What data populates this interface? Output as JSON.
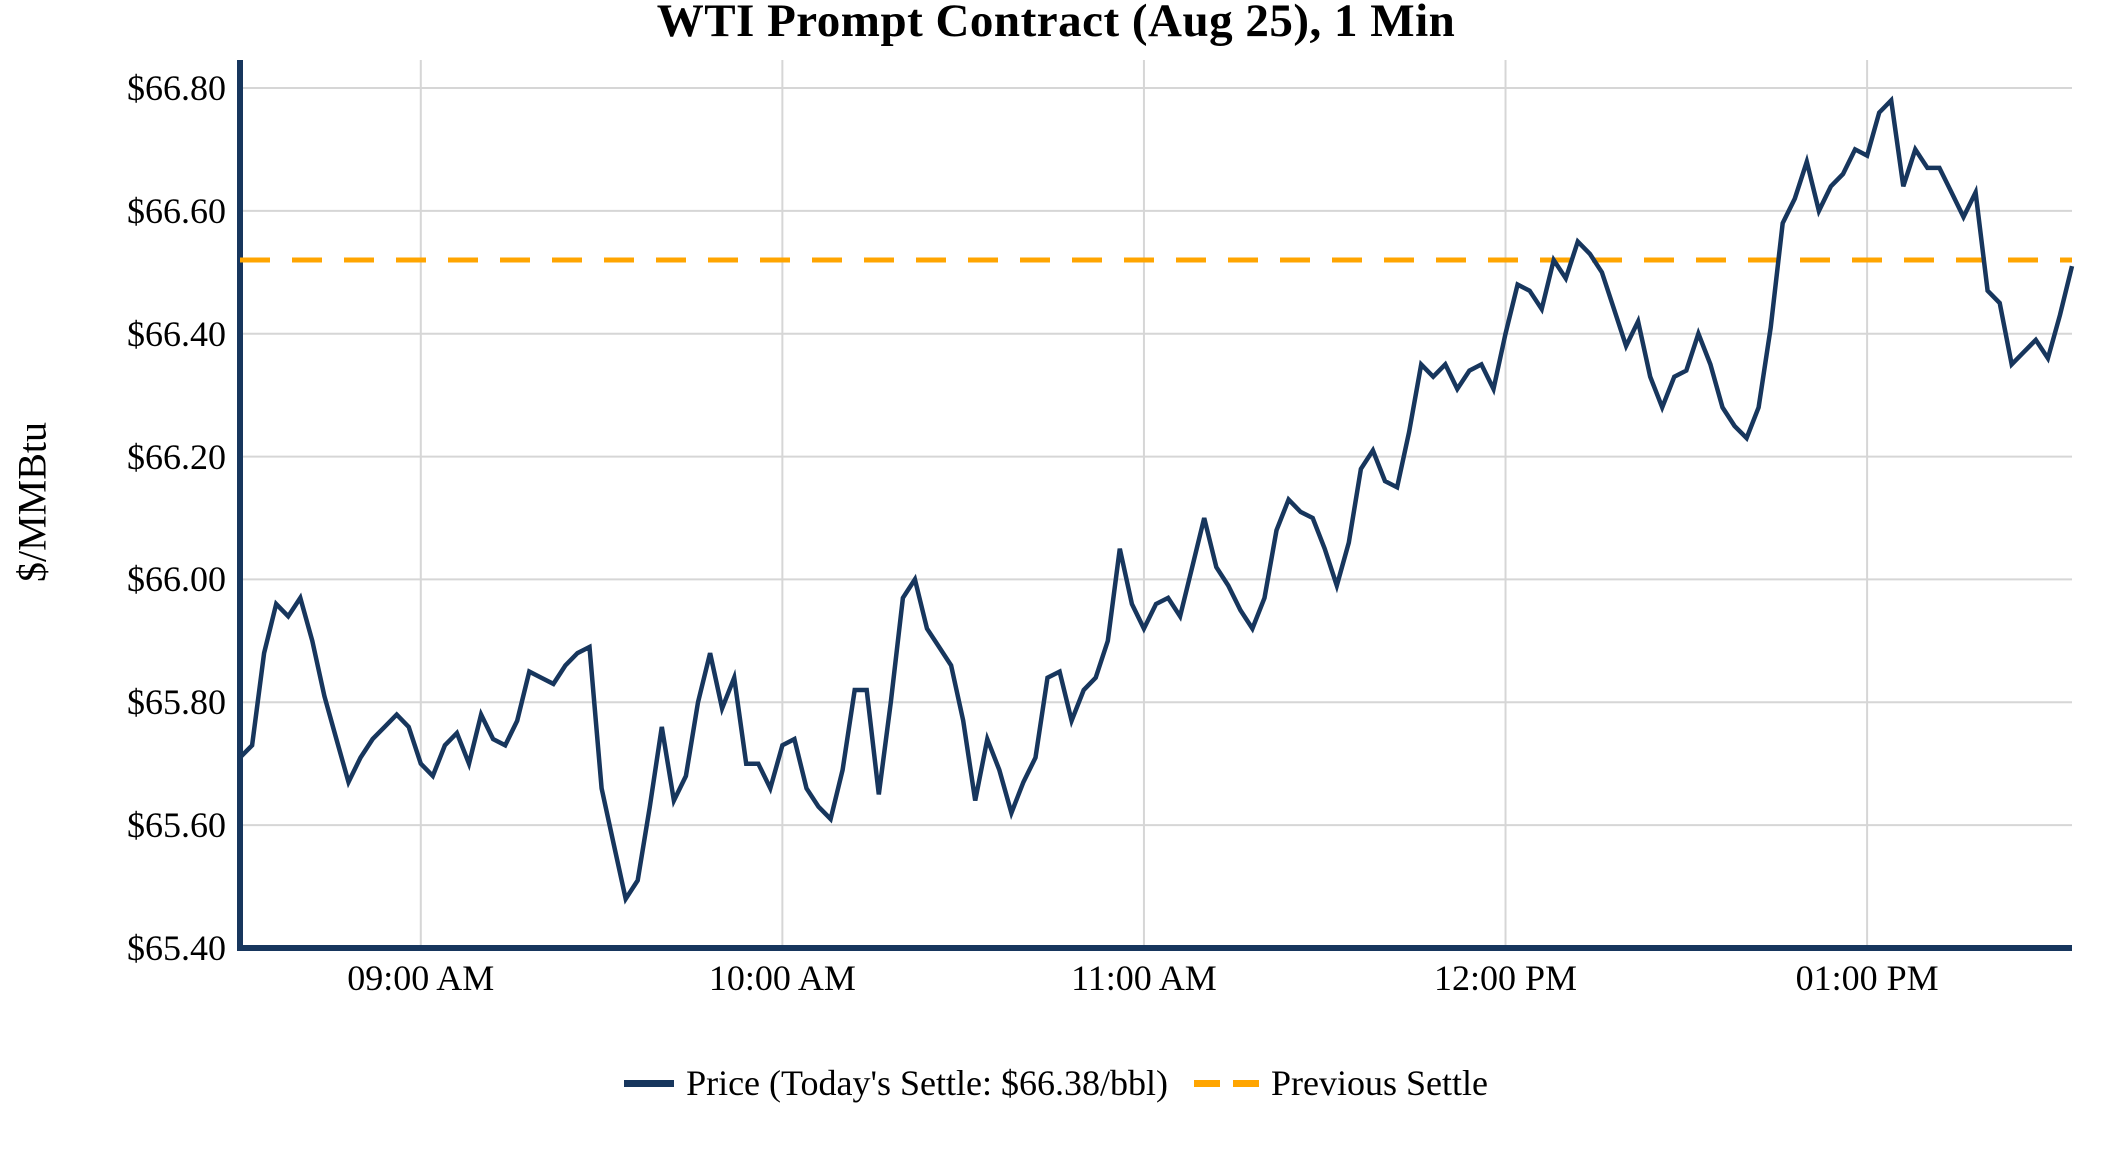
{
  "chart_data": {
    "type": "line",
    "title": "WTI Prompt Contract (Aug 25), 1 Min",
    "ylabel": "$/MMBtu",
    "ylim": [
      65.4,
      66.8
    ],
    "grid": true,
    "legend_position": "bottom-center",
    "previous_settle": 66.52,
    "todays_settle": 66.38,
    "colors": {
      "price_line": "#17365D",
      "previous_settle_line": "#FFA500",
      "gridline": "#D6D6D6",
      "axis": "#17365D",
      "text": "#000000",
      "background": "#FFFFFF"
    },
    "y_ticks": [
      {
        "label": "$66.80",
        "value": 66.8
      },
      {
        "label": "$66.60",
        "value": 66.6
      },
      {
        "label": "$66.40",
        "value": 66.4
      },
      {
        "label": "$66.20",
        "value": 66.2
      },
      {
        "label": "$66.00",
        "value": 66.0
      },
      {
        "label": "$65.80",
        "value": 65.8
      },
      {
        "label": "$65.60",
        "value": 65.6
      },
      {
        "label": "$65.40",
        "value": 65.4
      }
    ],
    "x_ticks": [
      {
        "label": "09:00 AM",
        "index": 15
      },
      {
        "label": "10:00 AM",
        "index": 45
      },
      {
        "label": "11:00 AM",
        "index": 75
      },
      {
        "label": "12:00 PM",
        "index": 105
      },
      {
        "label": "01:00 PM",
        "index": 135
      }
    ],
    "legend": [
      {
        "label": "Price (Today's Settle: $66.38/bbl)",
        "style": "solid",
        "color": "#17365D"
      },
      {
        "label": "Previous Settle",
        "style": "dashed",
        "color": "#FFA500"
      }
    ],
    "series": [
      {
        "name": "Price",
        "start_time": "08:30 AM",
        "end_time": "01:34 PM",
        "interval_minutes": 2,
        "values": [
          65.71,
          65.73,
          65.88,
          65.96,
          65.94,
          65.97,
          65.9,
          65.81,
          65.74,
          65.67,
          65.71,
          65.74,
          65.76,
          65.78,
          65.76,
          65.7,
          65.68,
          65.73,
          65.75,
          65.7,
          65.78,
          65.74,
          65.73,
          65.77,
          65.85,
          65.84,
          65.83,
          65.86,
          65.88,
          65.89,
          65.66,
          65.57,
          65.48,
          65.51,
          65.63,
          65.76,
          65.64,
          65.68,
          65.8,
          65.88,
          65.79,
          65.84,
          65.7,
          65.7,
          65.66,
          65.73,
          65.74,
          65.66,
          65.63,
          65.61,
          65.69,
          65.82,
          65.82,
          65.65,
          65.8,
          65.97,
          66.0,
          65.92,
          65.89,
          65.86,
          65.77,
          65.64,
          65.74,
          65.69,
          65.62,
          65.67,
          65.71,
          65.84,
          65.85,
          65.77,
          65.82,
          65.84,
          65.9,
          66.05,
          65.96,
          65.92,
          65.96,
          65.97,
          65.94,
          66.02,
          66.1,
          66.02,
          65.99,
          65.95,
          65.92,
          65.97,
          66.08,
          66.13,
          66.11,
          66.1,
          66.05,
          65.99,
          66.06,
          66.18,
          66.21,
          66.16,
          66.15,
          66.24,
          66.35,
          66.33,
          66.35,
          66.31,
          66.34,
          66.35,
          66.31,
          66.4,
          66.48,
          66.47,
          66.44,
          66.52,
          66.49,
          66.55,
          66.53,
          66.5,
          66.44,
          66.38,
          66.42,
          66.33,
          66.28,
          66.33,
          66.34,
          66.4,
          66.35,
          66.28,
          66.25,
          66.23,
          66.28,
          66.41,
          66.58,
          66.62,
          66.68,
          66.6,
          66.64,
          66.66,
          66.7,
          66.69,
          66.76,
          66.78,
          66.64,
          66.7,
          66.67,
          66.67,
          66.63,
          66.59,
          66.63,
          66.47,
          66.45,
          66.35,
          66.37,
          66.39,
          66.36,
          66.43,
          66.51
        ]
      }
    ]
  }
}
